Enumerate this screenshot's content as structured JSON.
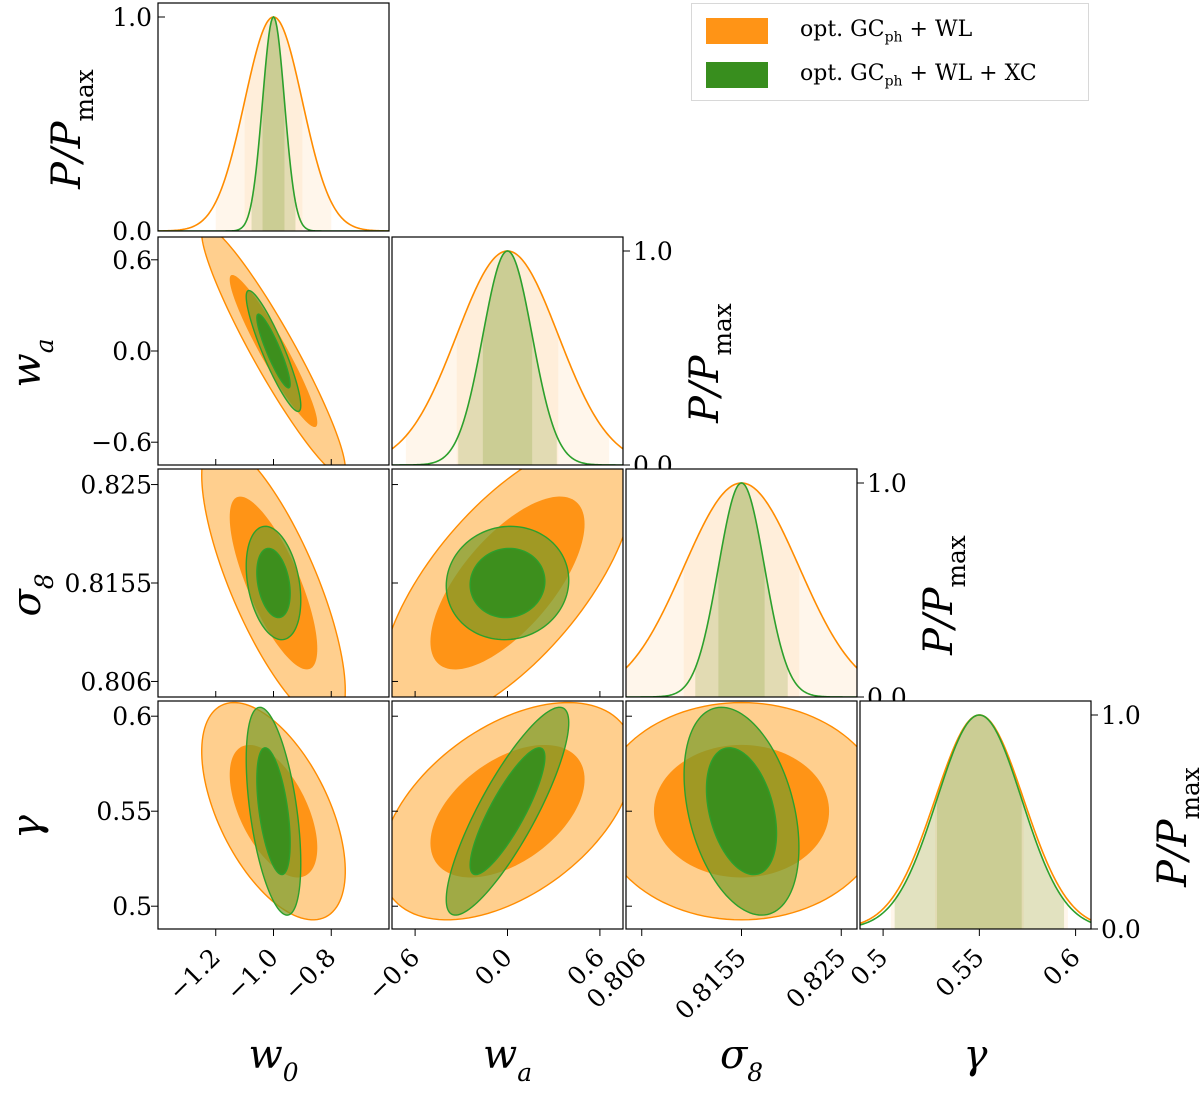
{
  "chart_data": {
    "type": "corner-triangle",
    "series": [
      {
        "name": "opt. GC_ph + WL",
        "label_main": "opt. GC",
        "label_sub": "ph",
        "label_tail": " + WL",
        "color": "#ff8c00",
        "fill_outer": "#ffcf8e",
        "fill_inner": "#ff9416",
        "mean": {
          "w0": -1.0,
          "wa": 0.0,
          "sigma8": 0.8155,
          "gamma": 0.55
        },
        "sigma": {
          "w0": 0.1,
          "wa": 0.33,
          "sigma8": 0.0055,
          "gamma": 0.023
        },
        "corr": {
          "w0_wa": -0.94,
          "w0_sigma8": -0.76,
          "wa_sigma8": 0.68,
          "w0_gamma": -0.55,
          "wa_gamma": 0.48,
          "sigma8_gamma": 0.0
        }
      },
      {
        "name": "opt. GC_ph + WL + XC",
        "label_main": "opt. GC",
        "label_sub": "ph",
        "label_tail": " + WL + XC",
        "color": "#2ca02c",
        "fill_outer": "#7c9b2a",
        "fill_inner": "#388e1e",
        "mean": {
          "w0": -1.0,
          "wa": 0.0,
          "sigma8": 0.8155,
          "gamma": 0.55
        },
        "sigma": {
          "w0": 0.038,
          "wa": 0.16,
          "sigma8": 0.0022,
          "gamma": 0.022
        },
        "corr": {
          "w0_wa": -0.9,
          "w0_sigma8": -0.3,
          "wa_sigma8": 0.05,
          "w0_gamma": -0.5,
          "wa_gamma": 0.85,
          "sigma8_gamma": -0.35
        }
      }
    ],
    "params": [
      {
        "key": "w0",
        "label_main": "w",
        "label_sub": "0",
        "range": [
          -1.4,
          -0.6
        ],
        "xticks": [
          {
            "v": -1.2,
            "t": "−1.2"
          },
          {
            "v": -1.0,
            "t": "−1.0"
          },
          {
            "v": -0.8,
            "t": "−0.8"
          }
        ]
      },
      {
        "key": "wa",
        "label_main": "w",
        "label_sub": "a",
        "range": [
          -0.75,
          0.75
        ],
        "xticks": [
          {
            "v": -0.6,
            "t": "−0.6"
          },
          {
            "v": 0.0,
            "t": "0.0"
          },
          {
            "v": 0.6,
            "t": "0.6"
          }
        ],
        "yticks": [
          {
            "v": 0.6,
            "t": "0.6"
          },
          {
            "v": 0.0,
            "t": "0.0"
          },
          {
            "v": -0.6,
            "t": "−0.6"
          }
        ]
      },
      {
        "key": "sigma8",
        "label_main": "σ",
        "label_sub": "8",
        "range": [
          0.8045,
          0.8265
        ],
        "xticks": [
          {
            "v": 0.806,
            "t": "0.806"
          },
          {
            "v": 0.8155,
            "t": "0.8155"
          },
          {
            "v": 0.825,
            "t": "0.825"
          }
        ],
        "yticks": [
          {
            "v": 0.825,
            "t": "0.825"
          },
          {
            "v": 0.8155,
            "t": "0.8155"
          },
          {
            "v": 0.806,
            "t": "0.806"
          }
        ]
      },
      {
        "key": "gamma",
        "label_main": "γ",
        "label_sub": "",
        "range": [
          0.488,
          0.608
        ],
        "xticks": [
          {
            "v": 0.5,
            "t": "0.5"
          },
          {
            "v": 0.55,
            "t": "0.55"
          },
          {
            "v": 0.6,
            "t": "0.6"
          }
        ],
        "yticks": [
          {
            "v": 0.6,
            "t": "0.6"
          },
          {
            "v": 0.55,
            "t": "0.55"
          },
          {
            "v": 0.5,
            "t": "0.5"
          }
        ]
      }
    ],
    "diag_ylabel": {
      "main": "P/P",
      "sub": "max"
    },
    "diag_yticks": [
      {
        "v": 1.0,
        "t": "1.0"
      },
      {
        "v": 0.0,
        "t": "0.0"
      }
    ],
    "contour_levels_sigma": [
      1,
      2
    ],
    "legend_position": "top-right"
  }
}
